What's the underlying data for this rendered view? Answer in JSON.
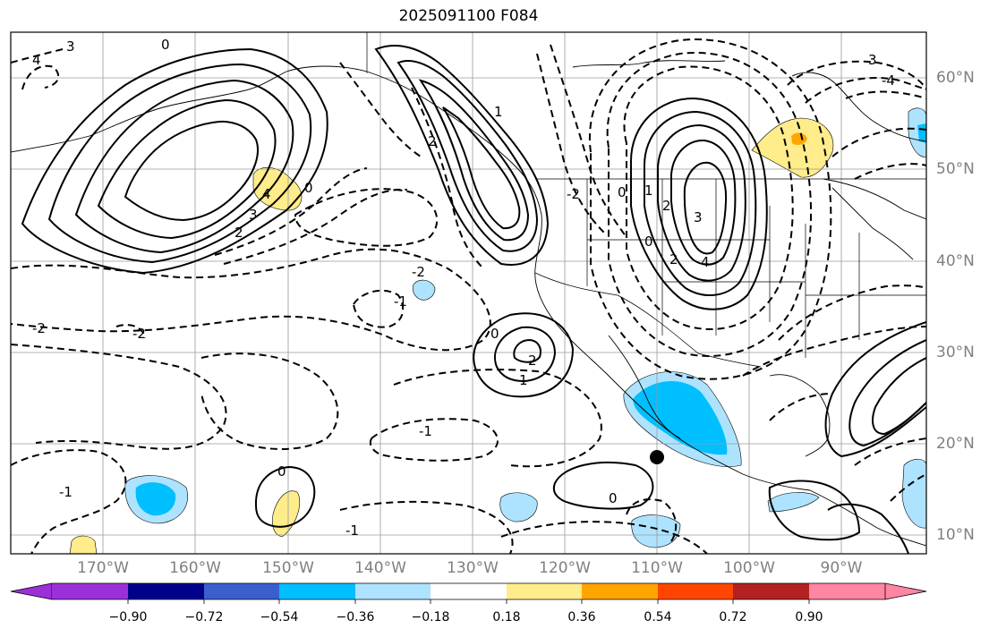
{
  "title": "2025091100 F084",
  "lat_labels": [
    "60°N",
    "50°N",
    "40°N",
    "30°N",
    "20°N",
    "10°N"
  ],
  "lon_labels": [
    "170°W",
    "160°W",
    "150°W",
    "140°W",
    "130°W",
    "120°W",
    "110°W",
    "100°W",
    "90°W"
  ],
  "colorbar": {
    "ticks": [
      "−0.90",
      "−0.72",
      "−0.54",
      "−0.36",
      "−0.18",
      "0.18",
      "0.36",
      "0.54",
      "0.72",
      "0.90"
    ],
    "colors": [
      "#9b30d9",
      "#00008b",
      "#3a5fcd",
      "#00bfff",
      "#aee3ff",
      "#ffffff",
      "#ffec8b",
      "#ffa500",
      "#ff4500",
      "#b22222",
      "#ff85a2"
    ]
  },
  "contour_labels": [
    "3",
    "4",
    "0",
    "2",
    "-2",
    "-1",
    "1",
    "2",
    "3",
    "4",
    "0",
    "-2",
    "-1",
    "0",
    "1",
    "2",
    "-2",
    "-1",
    "0",
    "-1",
    "1",
    "2",
    "0",
    "-2",
    "2",
    "0",
    "3",
    "4",
    "3",
    "-4",
    "0"
  ],
  "marker": "storm-position-dot"
}
